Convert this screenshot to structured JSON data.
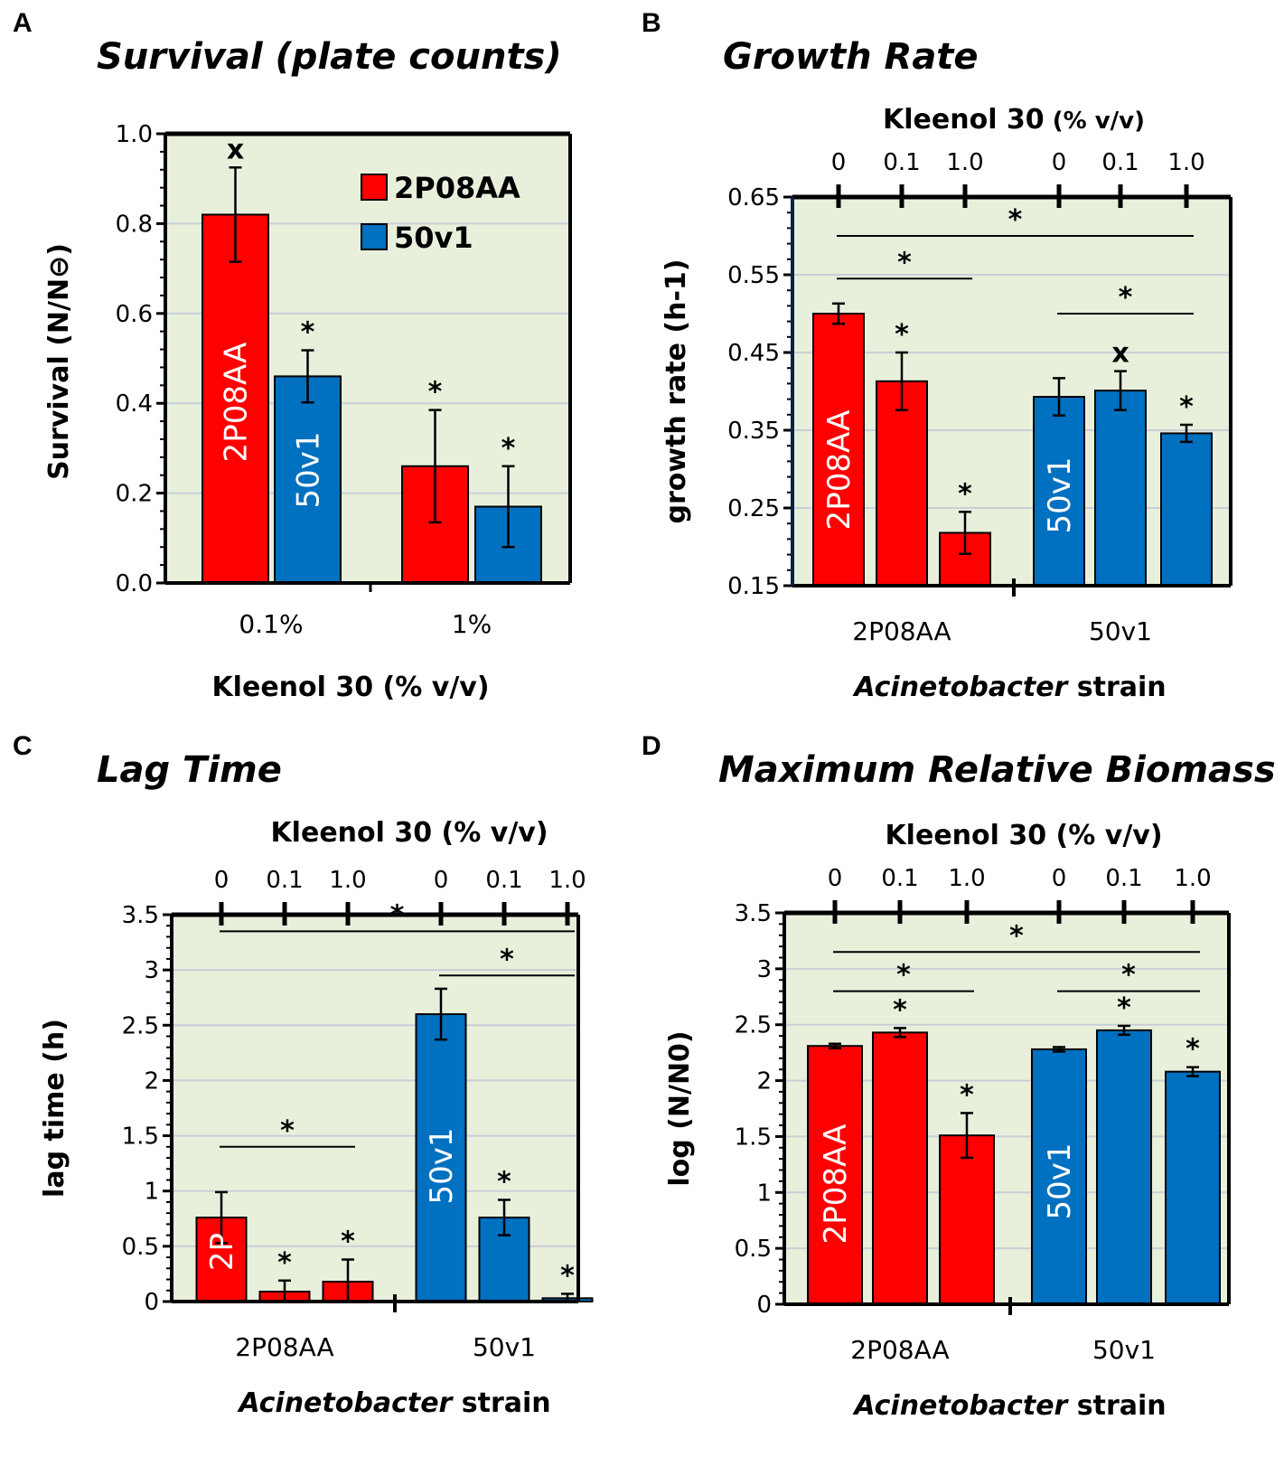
{
  "colors": {
    "red": "#ff0000",
    "blue": "#0070c0",
    "plot_bg": "#e8f0dc",
    "grid": "#c9cfd8"
  },
  "chart_data": [
    {
      "id": "A",
      "panel_label": "A",
      "type": "bar",
      "title": "Survival (plate counts)",
      "ylabel": "Survival (N/N⊖)",
      "xlabel": "Kleenol 30 (% v/v)",
      "ylim": [
        0,
        1.0
      ],
      "yticks": [
        "0.0",
        "0.2",
        "0.4",
        "0.6",
        "0.8",
        "1.0"
      ],
      "categories": [
        "0.1%",
        "1%"
      ],
      "legend": [
        "2P08AA",
        "50v1"
      ],
      "bar_labels": [
        "2P08AA",
        "50v1"
      ],
      "bars": [
        {
          "group": 0,
          "series": "2P08AA",
          "value": 0.82,
          "err": 0.105,
          "mark": "x"
        },
        {
          "group": 0,
          "series": "50v1",
          "value": 0.46,
          "err": 0.058,
          "mark": "*"
        },
        {
          "group": 1,
          "series": "2P08AA",
          "value": 0.26,
          "err": 0.125,
          "mark": "*"
        },
        {
          "group": 1,
          "series": "50v1",
          "value": 0.17,
          "err": 0.09,
          "mark": "*"
        }
      ],
      "brackets": []
    },
    {
      "id": "B",
      "panel_label": "B",
      "type": "bar",
      "title": "Growth Rate",
      "ylabel": "growth rate (h-1)",
      "xlabel_italic": "Acinetobacter",
      "xlabel_rest": " strain",
      "top_axis_label_bold": "Kleenol 30",
      "top_axis_label_rest": " (% v/v)",
      "top_ticks": [
        "0",
        "0.1",
        "1.0",
        "0",
        "0.1",
        "1.0"
      ],
      "ylim": [
        0.15,
        0.65
      ],
      "yticks": [
        "0.15",
        "0.25",
        "0.35",
        "0.45",
        "0.55",
        "0.65"
      ],
      "categories": [
        "2P08AA",
        "50v1"
      ],
      "bar_labels": [
        "2P08AA",
        "50v1"
      ],
      "bars": [
        {
          "series": "2P08AA",
          "value": 0.5,
          "err": 0.013,
          "mark": ""
        },
        {
          "series": "2P08AA",
          "value": 0.413,
          "err": 0.037,
          "mark": "*"
        },
        {
          "series": "2P08AA",
          "value": 0.218,
          "err": 0.027,
          "mark": "*"
        },
        {
          "series": "50v1",
          "value": 0.393,
          "err": 0.024,
          "mark": ""
        },
        {
          "series": "50v1",
          "value": 0.401,
          "err": 0.025,
          "mark": "x"
        },
        {
          "series": "50v1",
          "value": 0.346,
          "err": 0.011,
          "mark": "*"
        }
      ],
      "brackets": [
        {
          "from": 0,
          "to": 5,
          "level": 0.6,
          "mark": "*"
        },
        {
          "from": 0,
          "to": 2,
          "level": 0.545,
          "mark": "*"
        },
        {
          "from": 3,
          "to": 5,
          "level": 0.5,
          "mark": "*"
        }
      ]
    },
    {
      "id": "C",
      "panel_label": "C",
      "type": "bar",
      "title": "Lag Time",
      "ylabel": "lag time (h)",
      "xlabel_italic": "Acinetobacter",
      "xlabel_rest": " strain",
      "top_axis_label_bold": "Kleenol 30 (% v/v)",
      "top_axis_label_rest": "",
      "top_ticks": [
        "0",
        "0.1",
        "1.0",
        "0",
        "0.1",
        "1.0"
      ],
      "ylim": [
        0,
        3.5
      ],
      "yticks": [
        "0",
        "0.5",
        "1",
        "1.5",
        "2",
        "2.5",
        "3",
        "3.5"
      ],
      "categories": [
        "2P08AA",
        "50v1"
      ],
      "bar_labels": [
        "2P",
        "50v1"
      ],
      "bars": [
        {
          "series": "2P08AA",
          "value": 0.76,
          "err": 0.23,
          "mark": ""
        },
        {
          "series": "2P08AA",
          "value": 0.09,
          "err": 0.1,
          "mark": "*"
        },
        {
          "series": "2P08AA",
          "value": 0.18,
          "err": 0.2,
          "mark": "*"
        },
        {
          "series": "50v1",
          "value": 2.6,
          "err": 0.23,
          "mark": ""
        },
        {
          "series": "50v1",
          "value": 0.76,
          "err": 0.16,
          "mark": "*"
        },
        {
          "series": "50v1",
          "value": 0.03,
          "err": 0.04,
          "mark": "*"
        }
      ],
      "brackets": [
        {
          "from": 0,
          "to": 5,
          "level": 3.35,
          "mark": "*"
        },
        {
          "from": 3,
          "to": 5,
          "level": 2.95,
          "mark": "*"
        },
        {
          "from": 0,
          "to": 2,
          "level": 1.4,
          "mark": "*"
        }
      ]
    },
    {
      "id": "D",
      "panel_label": "D",
      "type": "bar",
      "title": "Maximum Relative Biomass",
      "ylabel": "log (N/N0)",
      "xlabel_italic": "Acinetobacter",
      "xlabel_rest": " strain",
      "top_axis_label_bold": "Kleenol 30 (% v/v)",
      "top_axis_label_rest": "",
      "top_ticks": [
        "0",
        "0.1",
        "1.0",
        "0",
        "0.1",
        "1.0"
      ],
      "ylim": [
        0,
        3.5
      ],
      "yticks": [
        "0",
        "0.5",
        "1",
        "1.5",
        "2",
        "2.5",
        "3",
        "3.5"
      ],
      "categories": [
        "2P08AA",
        "50v1"
      ],
      "bar_labels": [
        "2P08AA",
        "50v1"
      ],
      "bars": [
        {
          "series": "2P08AA",
          "value": 2.31,
          "err": 0.02,
          "mark": ""
        },
        {
          "series": "2P08AA",
          "value": 2.43,
          "err": 0.04,
          "mark": "*"
        },
        {
          "series": "2P08AA",
          "value": 1.51,
          "err": 0.2,
          "mark": "*"
        },
        {
          "series": "50v1",
          "value": 2.28,
          "err": 0.02,
          "mark": ""
        },
        {
          "series": "50v1",
          "value": 2.45,
          "err": 0.04,
          "mark": "*"
        },
        {
          "series": "50v1",
          "value": 2.08,
          "err": 0.04,
          "mark": "*"
        }
      ],
      "brackets": [
        {
          "from": 0,
          "to": 5,
          "level": 3.15,
          "mark": "*"
        },
        {
          "from": 0,
          "to": 2,
          "level": 2.8,
          "mark": "*"
        },
        {
          "from": 3,
          "to": 5,
          "level": 2.8,
          "mark": "*"
        }
      ]
    }
  ]
}
